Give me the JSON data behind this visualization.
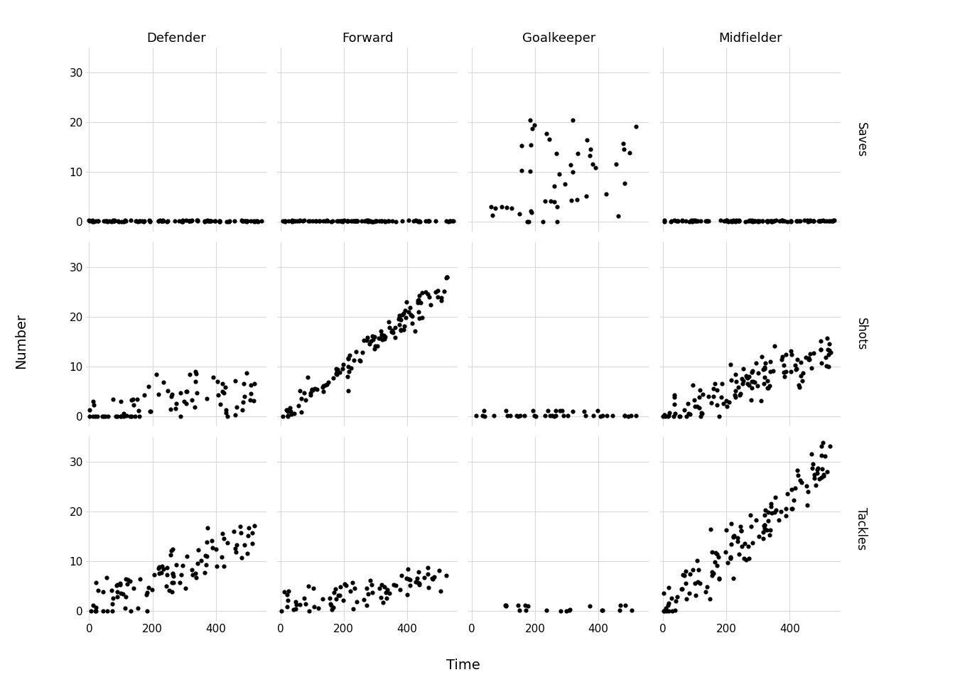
{
  "positions": [
    "Defender",
    "Forward",
    "Goalkeeper",
    "Midfielder"
  ],
  "metrics": [
    "Saves",
    "Shots",
    "Tackles"
  ],
  "xlabel": "Time",
  "ylabel": "Number",
  "background_color": "#ffffff",
  "panel_background": "#ffffff",
  "grid_color": "#d9d9d9",
  "point_color": "#000000",
  "point_size": 20,
  "title_fontsize": 13,
  "axis_fontsize": 11,
  "label_fontsize": 13,
  "strip_fontsize": 12,
  "ylim": [
    -2,
    35
  ],
  "xlim": [
    -10,
    560
  ],
  "yticks": [
    0,
    10,
    20,
    30
  ],
  "xticks": [
    0,
    200,
    400
  ],
  "seeds": {
    "Defender_Saves": 1,
    "Forward_Saves": 2,
    "Goalkeeper_Saves": 3,
    "Midfielder_Saves": 4,
    "Defender_Shots": 5,
    "Forward_Shots": 6,
    "Goalkeeper_Shots": 7,
    "Midfielder_Shots": 8,
    "Defender_Tackles": 9,
    "Forward_Tackles": 10,
    "Goalkeeper_Tackles": 11,
    "Midfielder_Tackles": 12
  }
}
